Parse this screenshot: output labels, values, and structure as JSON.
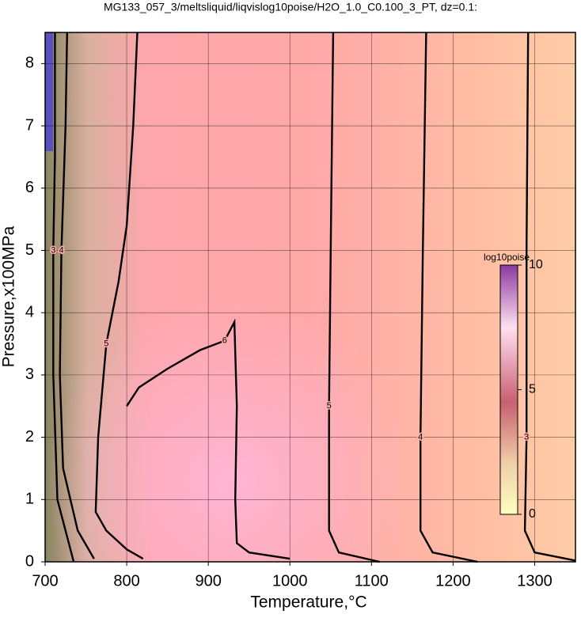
{
  "chart_data": {
    "type": "contour",
    "title": "MG133_057_3/meltsliquid/liqvislog10poise/H2O_1.0_C0.100_3_PT, dz=0.1:",
    "x_label": "Temperature,°C",
    "y_label": "Pressure,x100MPa",
    "xlim": [
      700,
      1350
    ],
    "ylim": [
      0,
      8.5
    ],
    "xticks": [
      700,
      800,
      900,
      1000,
      1100,
      1200,
      1300
    ],
    "yticks": [
      0,
      1,
      2,
      3,
      4,
      5,
      6,
      7,
      8
    ],
    "grid": true,
    "colorbar_label": "log10poise",
    "clim": [
      0,
      10
    ],
    "cticks": [
      0,
      5,
      10
    ],
    "contours": [
      {
        "level": 3,
        "x": [
          1292,
          1290,
          1290,
          1288,
          1300,
          1350
        ],
        "y": [
          8.5,
          5,
          2,
          0.5,
          0.15,
          0.02
        ]
      },
      {
        "level": 4,
        "x": [
          1167,
          1163,
          1160,
          1160,
          1175,
          1230
        ],
        "y": [
          8.5,
          5,
          2,
          0.5,
          0.15,
          0
        ]
      },
      {
        "level": 5,
        "x": [
          1053,
          1050,
          1048,
          1048,
          1060,
          1110
        ],
        "y": [
          8.5,
          5,
          2.5,
          0.5,
          0.15,
          0
        ]
      },
      {
        "level": 6,
        "x": [
          800,
          815,
          850,
          890,
          920,
          932,
          935,
          933,
          935,
          950,
          1000
        ],
        "y": [
          2.5,
          2.8,
          3.1,
          3.4,
          3.55,
          3.85,
          2.5,
          1,
          0.3,
          0.15,
          0.05
        ]
      },
      {
        "level": 5,
        "x": [
          813,
          808,
          800,
          790,
          775,
          765,
          762,
          775,
          800,
          820
        ],
        "y": [
          8.5,
          7,
          5.4,
          4.5,
          3.5,
          2,
          0.8,
          0.5,
          0.2,
          0.05
        ]
      },
      {
        "level": 4,
        "x": [
          727,
          725,
          720,
          718,
          722,
          740,
          760
        ],
        "y": [
          8.5,
          7,
          5,
          3,
          1.5,
          0.5,
          0.05
        ]
      },
      {
        "level": 3,
        "x": [
          712,
          712,
          710,
          710,
          715,
          735
        ],
        "y": [
          8.5,
          6.5,
          5,
          3,
          1,
          0
        ]
      }
    ]
  }
}
